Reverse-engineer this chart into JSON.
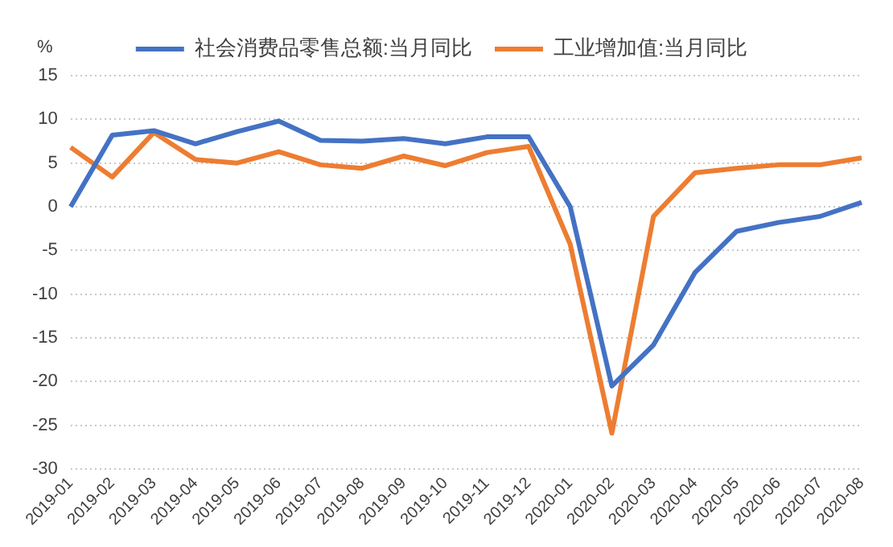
{
  "chart_data": {
    "type": "line",
    "ylabel": "%",
    "categories": [
      "2019-01",
      "2019-02",
      "2019-03",
      "2019-04",
      "2019-05",
      "2019-06",
      "2019-07",
      "2019-08",
      "2019-09",
      "2019-10",
      "2019-11",
      "2019-12",
      "2020-01",
      "2020-02",
      "2020-03",
      "2020-04",
      "2020-05",
      "2020-06",
      "2020-07",
      "2020-08"
    ],
    "series": [
      {
        "name": "社会消费品零售总额:当月同比",
        "color": "#4472c4",
        "values": [
          0,
          8.2,
          8.7,
          7.2,
          8.6,
          9.8,
          7.6,
          7.5,
          7.8,
          7.2,
          8.0,
          8.0,
          0,
          -20.5,
          -15.8,
          -7.5,
          -2.8,
          -1.8,
          -1.1,
          0.5
        ]
      },
      {
        "name": "工业增加值:当月同比",
        "color": "#ed7d31",
        "values": [
          6.8,
          3.4,
          8.5,
          5.4,
          5.0,
          6.3,
          4.8,
          4.4,
          5.8,
          4.7,
          6.2,
          6.9,
          -4.3,
          -25.9,
          -1.1,
          3.9,
          4.4,
          4.8,
          4.8,
          5.6
        ]
      }
    ],
    "ylim": [
      -30,
      15
    ],
    "yticks": [
      -30,
      -25,
      -20,
      -15,
      -10,
      -5,
      0,
      5,
      10,
      15
    ],
    "grid": "y",
    "legend": "top",
    "marker": "none",
    "line_style": "solid"
  }
}
